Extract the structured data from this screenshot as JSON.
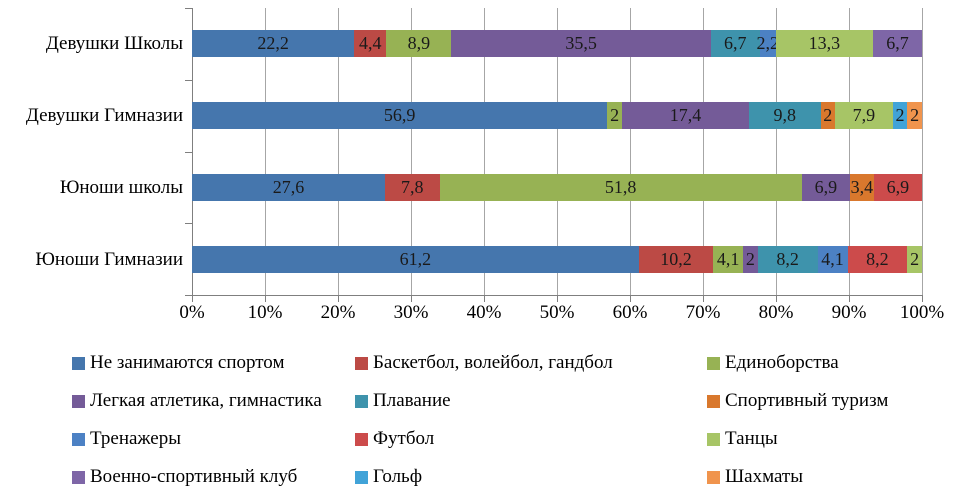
{
  "chart_data": {
    "type": "bar",
    "orientation": "horizontal",
    "stacked": true,
    "unit": "percent",
    "title": "",
    "xlabel": "",
    "ylabel": "",
    "x_axis": {
      "min": 0,
      "max": 100,
      "tick_step": 10,
      "ticks": [
        "0%",
        "10%",
        "20%",
        "30%",
        "40%",
        "50%",
        "60%",
        "70%",
        "80%",
        "90%",
        "100%"
      ]
    },
    "grid": "vertical-lines-on",
    "legend_position": "bottom",
    "legend_columns": 3,
    "categories": [
      "Девушки Школы",
      "Девушки Гимназии",
      "Юноши школы",
      "Юноши Гимназии"
    ],
    "series": [
      {
        "name": "Не занимаются спортом",
        "color": "#4576AD"
      },
      {
        "name": "Баскетбол, волейбол, гандбол",
        "color": "#BC4A45"
      },
      {
        "name": "Единоборства",
        "color": "#97B254"
      },
      {
        "name": "Легкая атлетика, гимнастика",
        "color": "#745B98"
      },
      {
        "name": "Плавание",
        "color": "#3E93AC"
      },
      {
        "name": "Спортивный туризм",
        "color": "#D9782D"
      },
      {
        "name": "Тренажеры",
        "color": "#4C81C4"
      },
      {
        "name": "Футбол",
        "color": "#CC4B4B"
      },
      {
        "name": "Танцы",
        "color": "#A7C566"
      },
      {
        "name": "Военно-спортивный клуб",
        "color": "#7E66A7"
      },
      {
        "name": "Гольф",
        "color": "#41A3D8"
      },
      {
        "name": "Шахматы",
        "color": "#F0944D"
      }
    ],
    "rows": [
      {
        "category": "Девушки Школы",
        "segments": [
          {
            "series": "Не занимаются спортом",
            "value": 22.2,
            "label": "22,2"
          },
          {
            "series": "Баскетбол, волейбол, гандбол",
            "value": 4.4,
            "label": "4,4"
          },
          {
            "series": "Единоборства",
            "value": 8.9,
            "label": "8,9"
          },
          {
            "series": "Легкая атлетика, гимнастика",
            "value": 35.5,
            "label": "35,5"
          },
          {
            "series": "Плавание",
            "value": 6.7,
            "label": "6,7"
          },
          {
            "series": "Тренажеры",
            "value": 2.2,
            "label": "2,2"
          },
          {
            "series": "Танцы",
            "value": 13.3,
            "label": "13,3"
          },
          {
            "series": "Военно-спортивный клуб",
            "value": 6.7,
            "label": "6,7"
          }
        ]
      },
      {
        "category": "Девушки Гимназии",
        "segments": [
          {
            "series": "Не занимаются спортом",
            "value": 56.9,
            "label": "56,9"
          },
          {
            "series": "Единоборства",
            "value": 2,
            "label": "2"
          },
          {
            "series": "Легкая атлетика, гимнастика",
            "value": 17.4,
            "label": "17,4"
          },
          {
            "series": "Плавание",
            "value": 9.8,
            "label": "9,8"
          },
          {
            "series": "Спортивный туризм",
            "value": 2,
            "label": "2"
          },
          {
            "series": "Танцы",
            "value": 7.9,
            "label": "7,9"
          },
          {
            "series": "Гольф",
            "value": 2,
            "label": "2"
          },
          {
            "series": "Шахматы",
            "value": 2,
            "label": "2"
          }
        ]
      },
      {
        "category": "Юноши школы",
        "segments": [
          {
            "series": "Не занимаются спортом",
            "value": 27.6,
            "label": "27,6"
          },
          {
            "series": "Баскетбол, волейбол, гандбол",
            "value": 7.8,
            "label": "7,8"
          },
          {
            "series": "Единоборства",
            "value": 51.8,
            "label": "51,8"
          },
          {
            "series": "Легкая атлетика, гимнастика",
            "value": 6.9,
            "label": "6,9"
          },
          {
            "series": "Спортивный туризм",
            "value": 3.4,
            "label": "3,4"
          },
          {
            "series": "Футбол",
            "value": 6.9,
            "label": "6,9"
          }
        ]
      },
      {
        "category": "Юноши Гимназии",
        "segments": [
          {
            "series": "Не занимаются спортом",
            "value": 61.2,
            "label": "61,2"
          },
          {
            "series": "Баскетбол, волейбол, гандбол",
            "value": 10.2,
            "label": "10,2"
          },
          {
            "series": "Единоборства",
            "value": 4.1,
            "label": "4,1"
          },
          {
            "series": "Легкая атлетика, гимнастика",
            "value": 2,
            "label": "2"
          },
          {
            "series": "Плавание",
            "value": 8.2,
            "label": "8,2"
          },
          {
            "series": "Тренажеры",
            "value": 4.1,
            "label": "4,1"
          },
          {
            "series": "Футбол",
            "value": 8.2,
            "label": "8,2"
          },
          {
            "series": "Танцы",
            "value": 2,
            "label": "2"
          }
        ]
      }
    ],
    "colors": {
      "gridline": "#A6A6A6",
      "axis": "#7F7F7F",
      "data_label": "#1A1A1A",
      "text": "#000000",
      "background": "#FFFFFF"
    }
  }
}
